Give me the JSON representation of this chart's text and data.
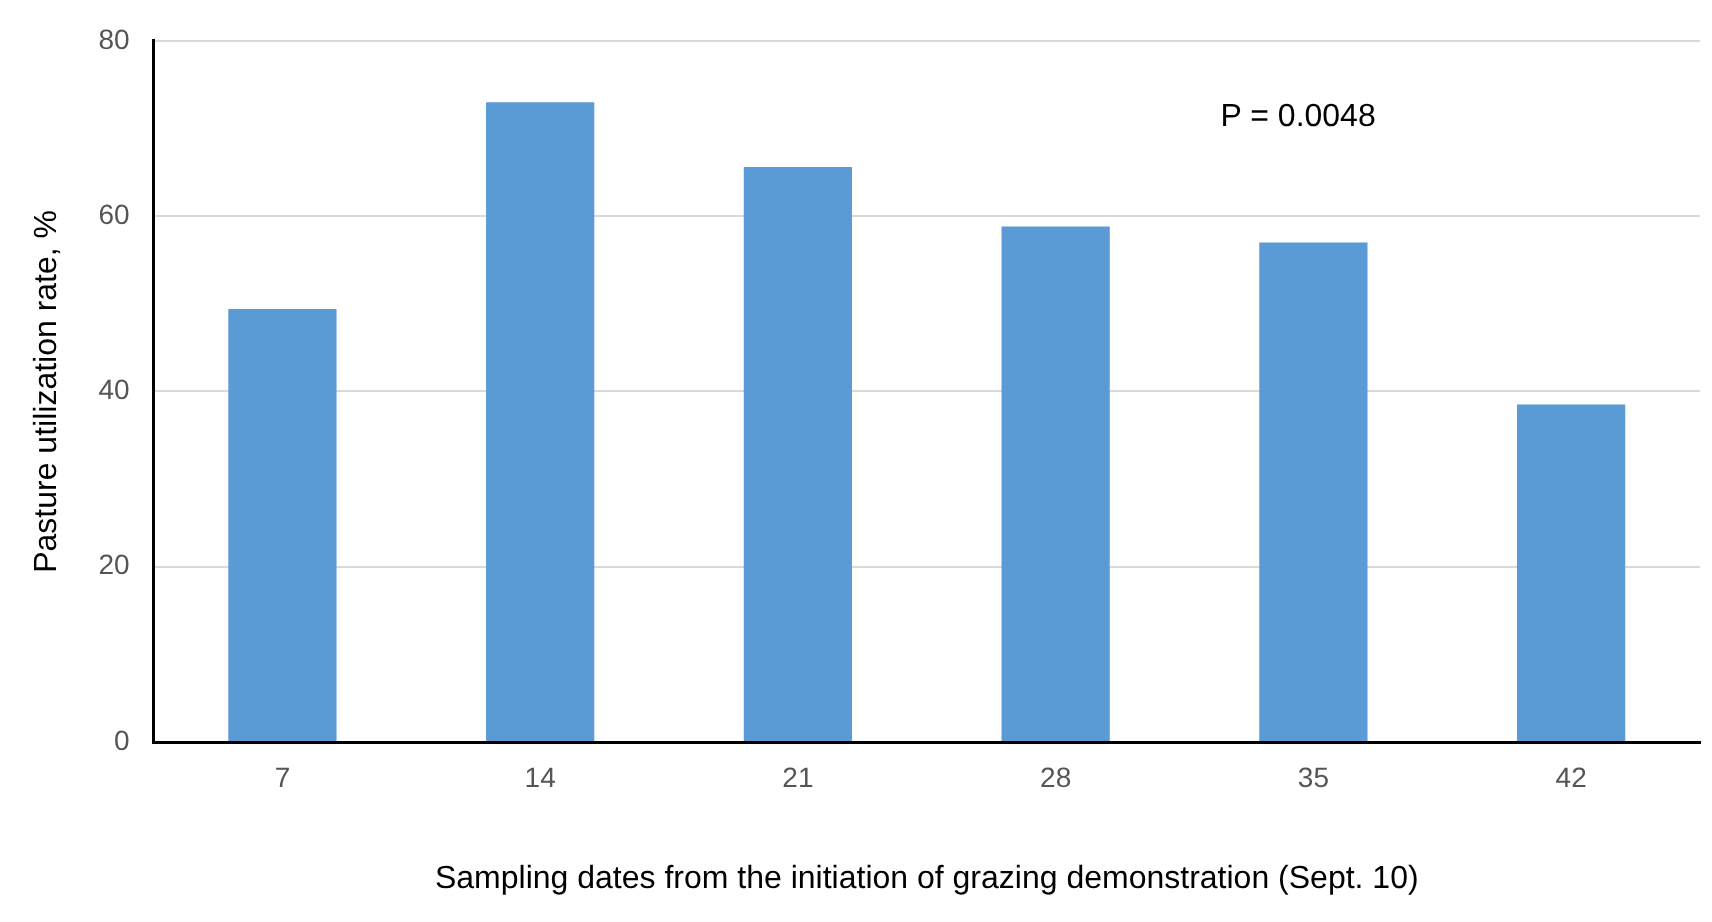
{
  "chart_data": {
    "type": "bar",
    "xlabel": "Sampling dates from the initiation of grazing demonstration (Sept. 10)",
    "ylabel": "Pasture utilization rate, %",
    "categories": [
      "7",
      "14",
      "21",
      "28",
      "35",
      "42"
    ],
    "values": [
      49.4,
      73.0,
      65.6,
      58.8,
      57.0,
      38.5
    ],
    "color": "#5b9bd5",
    "ylim": [
      0,
      80
    ],
    "yticks": [
      0,
      20,
      40,
      60,
      80
    ],
    "grid": "y",
    "legend": false,
    "annotations": [
      "P = 0.0048"
    ]
  }
}
